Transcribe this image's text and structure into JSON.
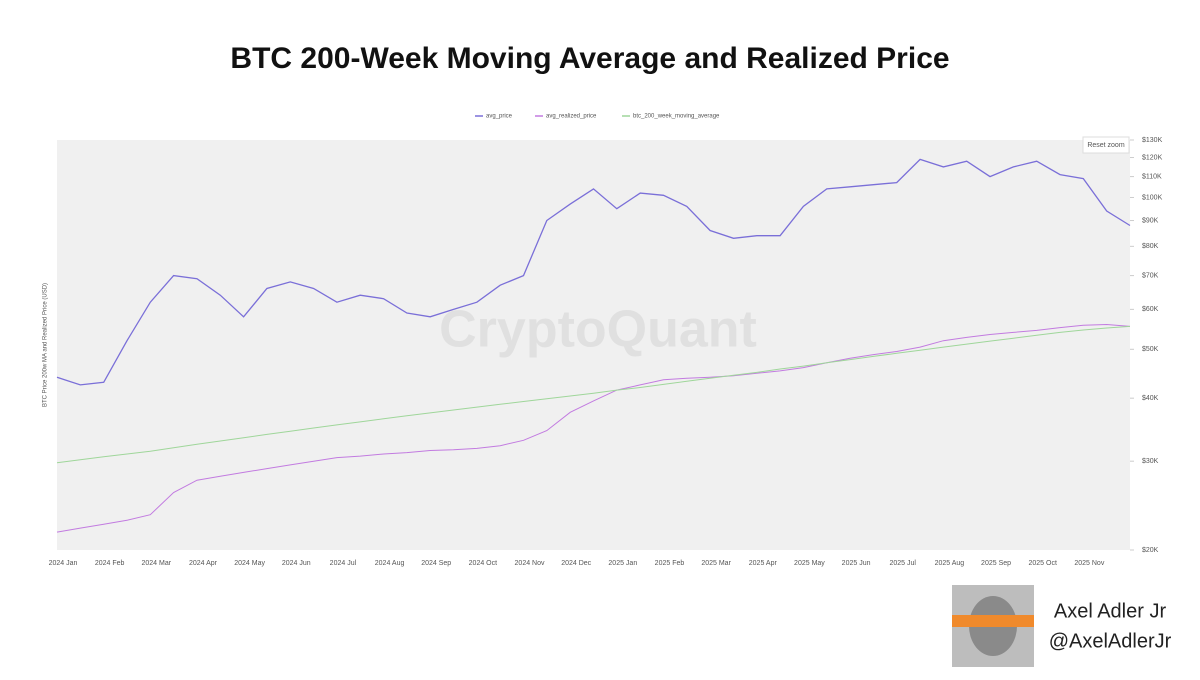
{
  "chart_data": {
    "type": "line",
    "title": "BTC 200-Week Moving Average and Realized Price",
    "y_label": "BTC Price 200w MA and Realized Price (USD)",
    "watermark": "CryptoQuant",
    "reset_zoom": "Reset zoom",
    "log_scale": true,
    "legend": "top",
    "categories": [
      "2024 Jan",
      null,
      "2024 Feb",
      null,
      "2024 Mar",
      null,
      "2024 Apr",
      null,
      "2024 May",
      null,
      "2024 Jun",
      null,
      "2024 Jul",
      null,
      "2024 Aug",
      null,
      "2024 Sep",
      null,
      "2024 Oct",
      null,
      "2024 Nov",
      null,
      "2024 Dec",
      null,
      "2025 Jan",
      null,
      "2025 Feb",
      null,
      "2025 Mar",
      null,
      "2025 Apr",
      null,
      "2025 May",
      null,
      "2025 Jun",
      null,
      "2025 Jul",
      null,
      "2025 Aug",
      null,
      "2025 Sep",
      null,
      "2025 Oct",
      null,
      "2025 Nov",
      null,
      null
    ],
    "series": [
      {
        "name": "avg_price",
        "color": "#7a6fd8",
        "values": [
          44000,
          42500,
          43000,
          52000,
          62000,
          70000,
          69000,
          64000,
          58000,
          66000,
          68000,
          66000,
          62000,
          64000,
          63000,
          59000,
          58000,
          60000,
          62000,
          67000,
          70000,
          90000,
          97000,
          104000,
          95000,
          102000,
          101000,
          96000,
          86000,
          83000,
          84000,
          84000,
          96000,
          104000,
          105000,
          106000,
          107000,
          119000,
          115000,
          118000,
          110000,
          115000,
          118000,
          111000,
          109000,
          94000,
          88000
        ]
      },
      {
        "name": "avg_realized_price",
        "color": "#c27be0",
        "values": [
          21700,
          22100,
          22500,
          22900,
          23500,
          26000,
          27500,
          28000,
          28500,
          29000,
          29500,
          30000,
          30500,
          30700,
          31000,
          31200,
          31500,
          31600,
          31800,
          32200,
          33000,
          34500,
          37500,
          39500,
          41500,
          42500,
          43500,
          43800,
          44000,
          44300,
          44800,
          45300,
          46000,
          47000,
          48000,
          48800,
          49500,
          50500,
          52000,
          52800,
          53500,
          54000,
          54500,
          55200,
          55800,
          56000,
          55500
        ]
      },
      {
        "name": "btc_200_week_moving_average",
        "color": "#9fd69a",
        "values": [
          29800,
          30200,
          30600,
          31000,
          31400,
          31900,
          32400,
          32900,
          33400,
          33900,
          34400,
          34900,
          35400,
          35900,
          36400,
          36900,
          37400,
          37900,
          38400,
          38900,
          39400,
          39900,
          40400,
          40900,
          41500,
          42000,
          42600,
          43200,
          43800,
          44400,
          45000,
          45700,
          46300,
          47000,
          47700,
          48400,
          49100,
          49800,
          50500,
          51200,
          51900,
          52600,
          53300,
          54000,
          54600,
          55100,
          55500
        ]
      }
    ],
    "ylim": [
      20000,
      130000
    ],
    "yticks": [
      {
        "value": 20000,
        "label": "$20K"
      },
      {
        "value": 30000,
        "label": "$30K"
      },
      {
        "value": 40000,
        "label": "$40K"
      },
      {
        "value": 50000,
        "label": "$50K"
      },
      {
        "value": 60000,
        "label": "$60K"
      },
      {
        "value": 70000,
        "label": "$70K"
      },
      {
        "value": 80000,
        "label": "$80K"
      },
      {
        "value": 90000,
        "label": "$90K"
      },
      {
        "value": 100000,
        "label": "$100K"
      },
      {
        "value": 110000,
        "label": "$110K"
      },
      {
        "value": 120000,
        "label": "$120K"
      },
      {
        "value": 130000,
        "label": "$130K"
      }
    ]
  },
  "author": {
    "name": "Axel Adler Jr",
    "handle": "@AxelAdlerJr"
  }
}
